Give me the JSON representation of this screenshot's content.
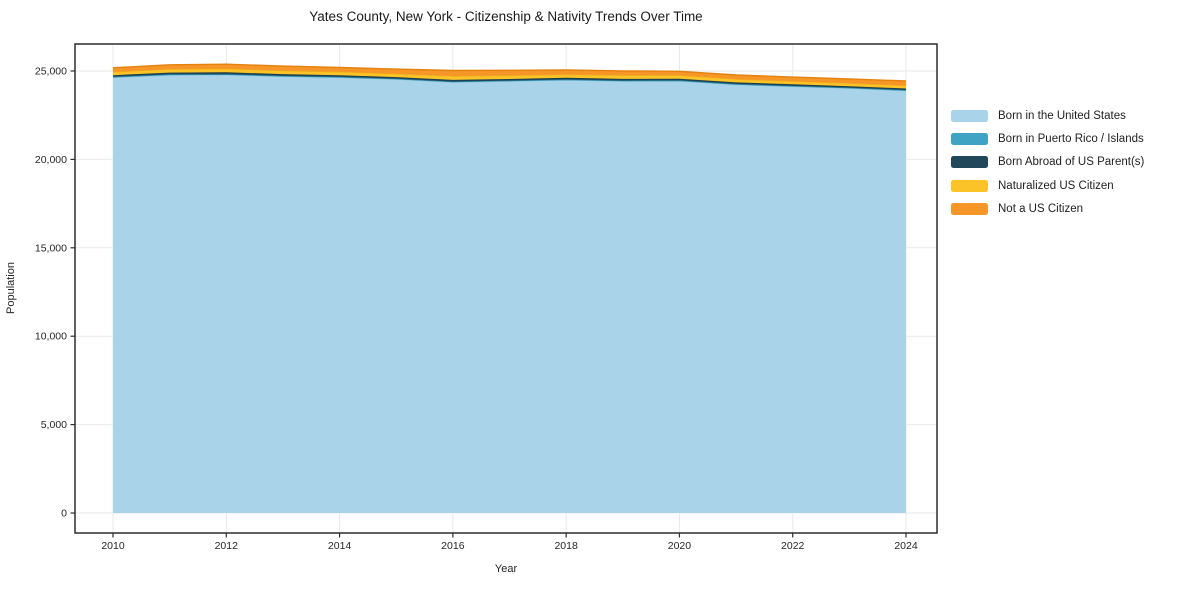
{
  "chart_data": {
    "type": "area",
    "stacked": true,
    "title": "Yates County, New York - Citizenship & Nativity Trends Over Time",
    "xlabel": "Year",
    "ylabel": "Population",
    "x": [
      2010,
      2011,
      2012,
      2013,
      2014,
      2015,
      2016,
      2017,
      2018,
      2019,
      2020,
      2021,
      2022,
      2023,
      2024
    ],
    "xticks": [
      2010,
      2012,
      2014,
      2016,
      2018,
      2020,
      2022,
      2024
    ],
    "xtick_labels": [
      "2010",
      "2012",
      "2014",
      "2016",
      "2018",
      "2020",
      "2022",
      "2024"
    ],
    "yticks": [
      0,
      5000,
      10000,
      15000,
      20000,
      25000
    ],
    "ytick_labels": [
      "0",
      "5,000",
      "10,000",
      "15,000",
      "20,000",
      "25,000"
    ],
    "ylim": [
      0,
      25000
    ],
    "grid": true,
    "legend_position": "right",
    "series": [
      {
        "name": "Born in the United States",
        "color": "#a8d3e8",
        "edge": "#8cc1dc",
        "values": [
          24640,
          24780,
          24790,
          24700,
          24640,
          24540,
          24370,
          24430,
          24500,
          24430,
          24440,
          24230,
          24130,
          24030,
          23890
        ]
      },
      {
        "name": "Born in Puerto Rico / Islands",
        "color": "#41a3c4",
        "edge": "#2e91b2",
        "values": [
          30,
          30,
          30,
          25,
          25,
          25,
          30,
          25,
          20,
          25,
          30,
          35,
          30,
          25,
          30
        ]
      },
      {
        "name": "Born Abroad of US Parent(s)",
        "color": "#20485a",
        "edge": "#163c4c",
        "values": [
          95,
          100,
          105,
          100,
          95,
          90,
          95,
          90,
          95,
          100,
          95,
          90,
          85,
          85,
          90
        ]
      },
      {
        "name": "Naturalized US Citizen",
        "color": "#fcc328",
        "edge": "#eeb01c",
        "values": [
          185,
          195,
          205,
          200,
          195,
          190,
          215,
          205,
          195,
          205,
          195,
          185,
          180,
          175,
          170
        ]
      },
      {
        "name": "Not a US Citizen",
        "color": "#f79628",
        "edge": "#e5810e",
        "values": [
          230,
          245,
          255,
          250,
          245,
          260,
          320,
          290,
          255,
          245,
          225,
          235,
          230,
          240,
          255
        ]
      }
    ]
  }
}
